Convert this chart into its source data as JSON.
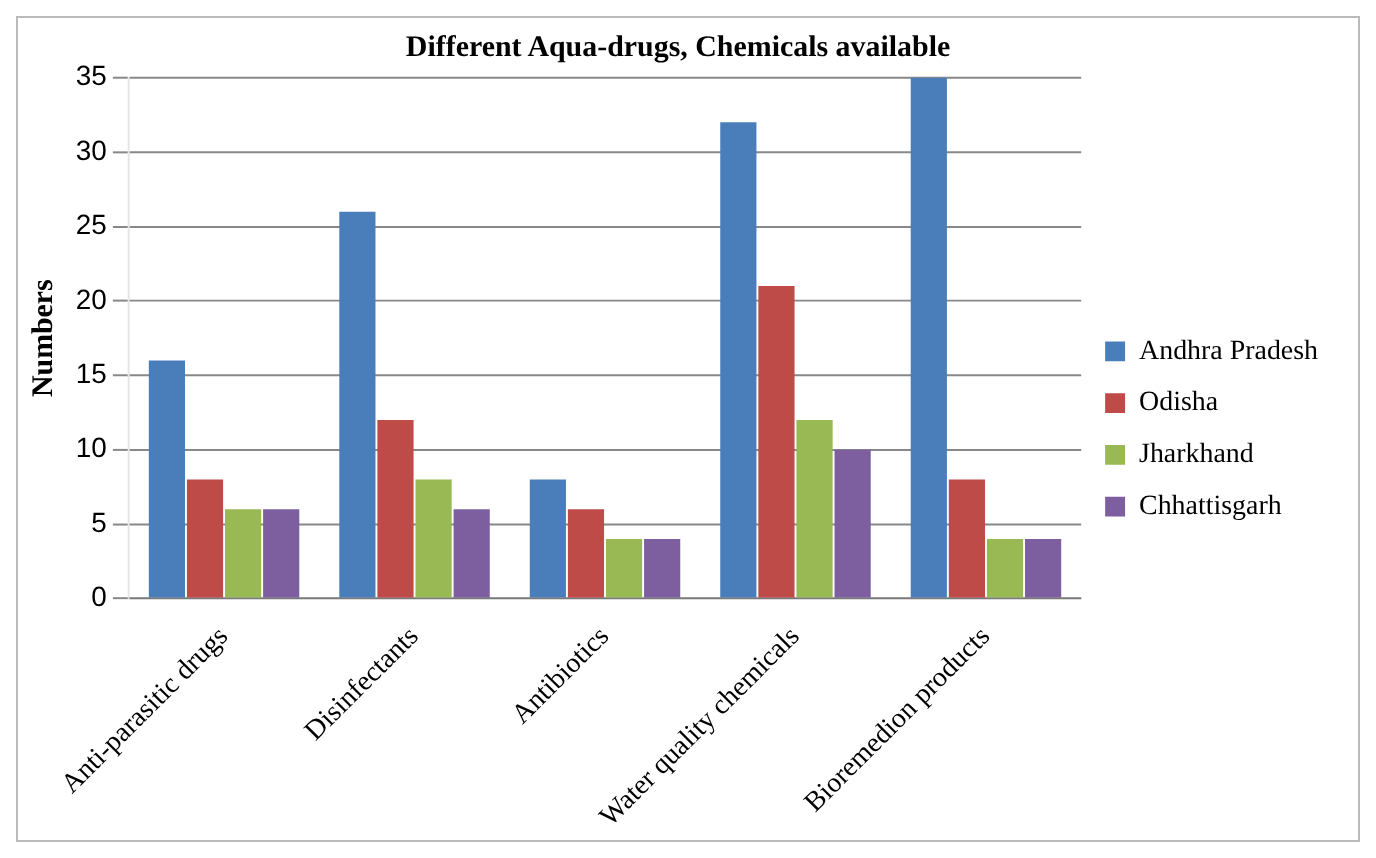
{
  "chart_data": {
    "type": "bar",
    "title": "Different Aqua-drugs, Chemicals available",
    "ylabel": "Numbers",
    "categories": [
      "Anti-parasitic drugs",
      "Disinfectants",
      "Antibiotics",
      "Water quality chemicals",
      "Bioremedion products"
    ],
    "series": [
      {
        "name": "Andhra Pradesh",
        "color": "#4a7ebb",
        "values": [
          16,
          26,
          8,
          32,
          35
        ]
      },
      {
        "name": "Odisha",
        "color": "#be4b48",
        "values": [
          8,
          12,
          6,
          21,
          8
        ]
      },
      {
        "name": "Jharkhand",
        "color": "#98b954",
        "values": [
          6,
          8,
          4,
          12,
          4
        ]
      },
      {
        "name": "Chhattisgarh",
        "color": "#7d5fa0",
        "values": [
          6,
          6,
          4,
          10,
          4
        ]
      }
    ],
    "ylim": [
      0,
      35
    ],
    "yticks": [
      0,
      5,
      10,
      15,
      20,
      25,
      30,
      35
    ],
    "grid": "y",
    "legend": "right"
  }
}
